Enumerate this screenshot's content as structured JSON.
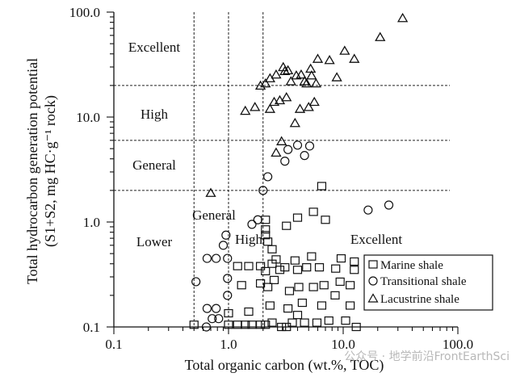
{
  "chart_data": {
    "type": "scatter",
    "x_scale": "log",
    "y_scale": "log",
    "xlabel": "Total organic carbon (wt.%, TOC)",
    "ylabel_line1": "Total hydrocarbon generation potential",
    "ylabel_line2": "(S1+S2, mg HC·g⁻¹ rock)",
    "xlim": [
      0.1,
      100.0
    ],
    "ylim": [
      0.1,
      100.0
    ],
    "x_ticks": [
      "0.1",
      "1.0",
      "10.0",
      "100.0"
    ],
    "y_ticks": [
      "0.1",
      "1.0",
      "10.0",
      "100.0"
    ],
    "x_tick_values": [
      0.1,
      1.0,
      10.0,
      100.0
    ],
    "y_tick_values": [
      0.1,
      1.0,
      10.0,
      100.0
    ],
    "vertical_thresholds": [
      0.5,
      1.0,
      2.0
    ],
    "horizontal_thresholds": [
      2.0,
      6.0,
      20.0
    ],
    "region_labels": {
      "y_excellent": "Excellent",
      "y_high": "High",
      "y_general": "General",
      "x_general": "General",
      "x_lower": "Lower",
      "x_high": "High",
      "x_excellent": "Excellent"
    },
    "legend": {
      "position": "bottom-right",
      "entries": [
        "Marine shale",
        "Transitional shale",
        "Lacustrine shale"
      ]
    },
    "series": [
      {
        "name": "Marine shale",
        "marker": "square",
        "points": [
          [
            0.5,
            0.105
          ],
          [
            1.0,
            0.135
          ],
          [
            1.0,
            0.105
          ],
          [
            1.2,
            0.105
          ],
          [
            1.4,
            0.105
          ],
          [
            1.6,
            0.105
          ],
          [
            1.9,
            0.105
          ],
          [
            2.1,
            0.105
          ],
          [
            2.4,
            0.11
          ],
          [
            2.9,
            0.1
          ],
          [
            3.2,
            0.1
          ],
          [
            3.6,
            0.11
          ],
          [
            4.6,
            0.11
          ],
          [
            5.9,
            0.11
          ],
          [
            7.5,
            0.115
          ],
          [
            10.5,
            0.115
          ],
          [
            13.0,
            0.1
          ],
          [
            1.5,
            0.14
          ],
          [
            2.3,
            0.16
          ],
          [
            3.3,
            0.15
          ],
          [
            4.0,
            0.13
          ],
          [
            4.4,
            0.17
          ],
          [
            6.5,
            0.16
          ],
          [
            8.5,
            0.2
          ],
          [
            11.5,
            0.16
          ],
          [
            1.3,
            0.25
          ],
          [
            1.9,
            0.26
          ],
          [
            2.2,
            0.24
          ],
          [
            2.5,
            0.28
          ],
          [
            3.4,
            0.22
          ],
          [
            4.1,
            0.24
          ],
          [
            5.5,
            0.24
          ],
          [
            6.8,
            0.25
          ],
          [
            9.4,
            0.27
          ],
          [
            11.5,
            0.25
          ],
          [
            2.1,
            0.34
          ],
          [
            2.4,
            0.4
          ],
          [
            2.8,
            0.35
          ],
          [
            3.1,
            0.37
          ],
          [
            4.0,
            0.35
          ],
          [
            4.8,
            0.37
          ],
          [
            6.2,
            0.37
          ],
          [
            8.6,
            0.36
          ],
          [
            12.5,
            0.35
          ],
          [
            1.2,
            0.38
          ],
          [
            1.5,
            0.38
          ],
          [
            1.9,
            0.38
          ],
          [
            2.6,
            0.44
          ],
          [
            3.8,
            0.43
          ],
          [
            5.3,
            0.47
          ],
          [
            9.6,
            0.45
          ],
          [
            12.5,
            0.42
          ],
          [
            2.2,
            0.65
          ],
          [
            2.4,
            0.55
          ],
          [
            2.1,
            0.75
          ],
          [
            2.1,
            0.85
          ],
          [
            3.2,
            0.92
          ],
          [
            2.1,
            1.05
          ],
          [
            4.0,
            1.1
          ],
          [
            5.5,
            1.25
          ],
          [
            7.0,
            1.05
          ],
          [
            6.5,
            2.2
          ]
        ]
      },
      {
        "name": "Transitional shale",
        "marker": "circle",
        "points": [
          [
            0.52,
            0.27
          ],
          [
            0.65,
            0.15
          ],
          [
            0.78,
            0.15
          ],
          [
            0.82,
            0.12
          ],
          [
            0.64,
            0.1
          ],
          [
            0.72,
            0.12
          ],
          [
            0.98,
            0.2
          ],
          [
            0.98,
            0.29
          ],
          [
            0.98,
            0.45
          ],
          [
            0.9,
            0.6
          ],
          [
            0.65,
            0.45
          ],
          [
            0.78,
            0.45
          ],
          [
            0.95,
            0.75
          ],
          [
            1.6,
            0.95
          ],
          [
            1.8,
            1.05
          ],
          [
            2.0,
            2.0
          ],
          [
            2.2,
            2.7
          ],
          [
            3.1,
            3.8
          ],
          [
            3.3,
            4.9
          ],
          [
            4.0,
            5.4
          ],
          [
            4.6,
            4.3
          ],
          [
            5.1,
            5.3
          ],
          [
            16.5,
            1.3
          ],
          [
            25.0,
            1.45
          ]
        ]
      },
      {
        "name": "Lacustrine shale",
        "marker": "triangle",
        "points": [
          [
            0.7,
            1.9
          ],
          [
            2.9,
            5.9
          ],
          [
            2.6,
            4.6
          ],
          [
            3.8,
            8.8
          ],
          [
            4.2,
            12.0
          ],
          [
            1.4,
            11.5
          ],
          [
            1.7,
            12.5
          ],
          [
            2.3,
            12.0
          ],
          [
            2.5,
            14.0
          ],
          [
            2.8,
            14.5
          ],
          [
            3.2,
            15.5
          ],
          [
            5.0,
            12.5
          ],
          [
            5.6,
            14.0
          ],
          [
            1.9,
            20.0
          ],
          [
            2.1,
            21.0
          ],
          [
            2.3,
            23.5
          ],
          [
            2.6,
            25.5
          ],
          [
            3.0,
            30.0
          ],
          [
            3.3,
            28.0
          ],
          [
            3.5,
            22.0
          ],
          [
            4.3,
            25.5
          ],
          [
            4.6,
            22.0
          ],
          [
            5.3,
            25.0
          ],
          [
            5.8,
            21.0
          ],
          [
            6.0,
            36.0
          ],
          [
            7.6,
            35.0
          ],
          [
            8.8,
            24.0
          ],
          [
            10.3,
            43.0
          ],
          [
            12.5,
            36.0
          ],
          [
            21.0,
            58.0
          ],
          [
            33.0,
            88.0
          ],
          [
            3.1,
            27.5
          ],
          [
            5.2,
            29.0
          ],
          [
            4.8,
            21.0
          ],
          [
            3.9,
            25.0
          ]
        ]
      }
    ]
  },
  "watermark": "公众号 · 地学前沿FrontEarthSci"
}
